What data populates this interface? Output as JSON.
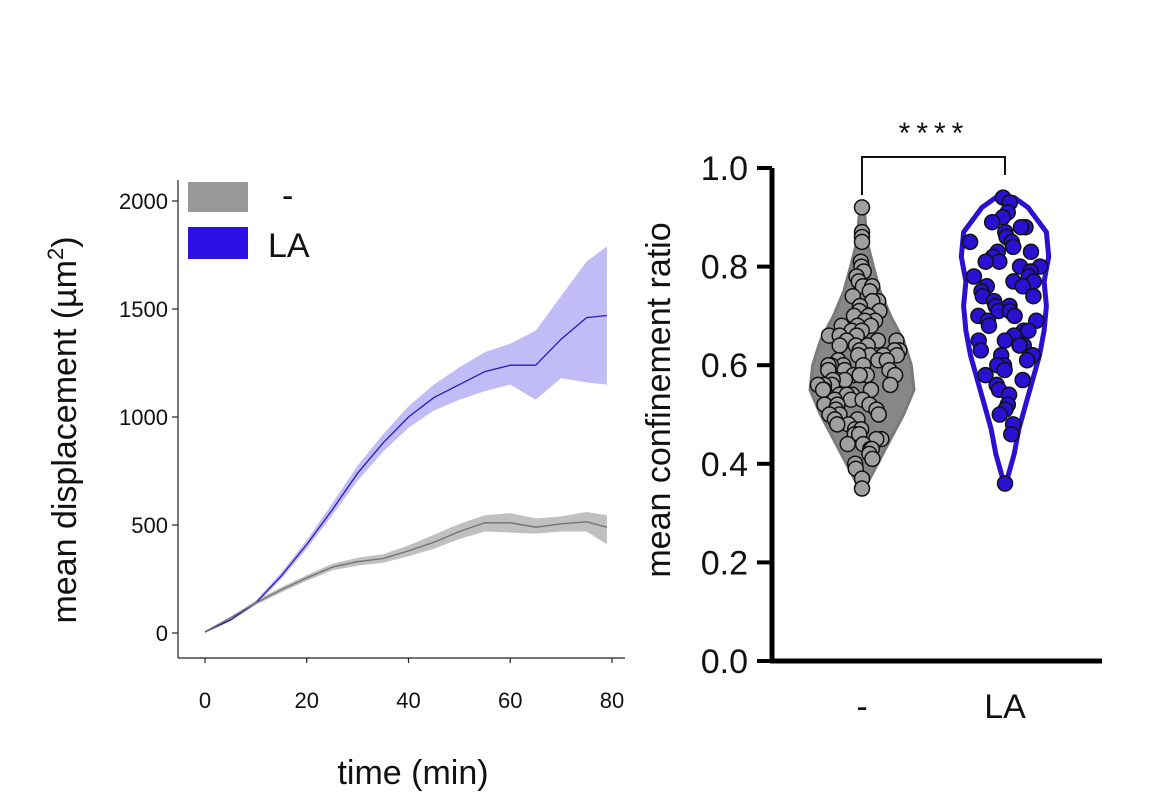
{
  "chart_data": [
    {
      "type": "area",
      "title": "",
      "xlabel": "time (min)",
      "ylabel": "mean displacement (µm²)",
      "ylabel_main": "mean displacement (µm",
      "ylabel_sup": "2",
      "ylabel_close": ")",
      "xlim": [
        -5,
        82
      ],
      "ylim": [
        -50,
        2100
      ],
      "xticks": [
        0,
        20,
        40,
        60,
        80
      ],
      "yticks": [
        0,
        500,
        1000,
        1500,
        2000
      ],
      "legend_position": "top-left",
      "series": [
        {
          "name": "-",
          "color": "#707070",
          "band_color": "#b5b5b5",
          "x": [
            0,
            5,
            10,
            15,
            20,
            25,
            30,
            35,
            40,
            45,
            50,
            55,
            60,
            65,
            70,
            75,
            79
          ],
          "mean": [
            5,
            70,
            140,
            200,
            255,
            305,
            330,
            345,
            380,
            420,
            470,
            510,
            510,
            490,
            505,
            515,
            490
          ],
          "lower": [
            0,
            65,
            130,
            188,
            242,
            290,
            312,
            325,
            355,
            390,
            435,
            470,
            465,
            460,
            470,
            470,
            410
          ],
          "upper": [
            10,
            75,
            150,
            212,
            268,
            320,
            348,
            365,
            405,
            455,
            505,
            545,
            555,
            530,
            540,
            560,
            545
          ]
        },
        {
          "name": "LA",
          "color": "#2a1ab5",
          "band_color": "#b7b0f5",
          "x": [
            0,
            5,
            10,
            15,
            20,
            25,
            30,
            35,
            40,
            45,
            50,
            55,
            60,
            65,
            70,
            75,
            79
          ],
          "mean": [
            5,
            60,
            140,
            265,
            410,
            570,
            740,
            880,
            1000,
            1090,
            1150,
            1210,
            1240,
            1240,
            1360,
            1460,
            1470
          ],
          "lower": [
            0,
            55,
            130,
            250,
            390,
            545,
            705,
            840,
            950,
            1030,
            1080,
            1120,
            1150,
            1080,
            1180,
            1160,
            1150
          ],
          "upper": [
            10,
            65,
            150,
            280,
            430,
            600,
            775,
            920,
            1050,
            1150,
            1230,
            1300,
            1340,
            1400,
            1560,
            1720,
            1790
          ]
        }
      ]
    },
    {
      "type": "scatter",
      "subtype": "violin",
      "title": "",
      "xlabel": "",
      "ylabel": "mean confinement ratio",
      "categories": [
        "-",
        "LA"
      ],
      "ylim": [
        0.0,
        1.0
      ],
      "yticks": [
        "0.0",
        "0.2",
        "0.4",
        "0.6",
        "0.8",
        "1.0"
      ],
      "significance": "****",
      "series": [
        {
          "name": "-",
          "fill": "#a0a0a0",
          "violin_color": "#7a7a7a",
          "violin_profile": [
            [
              0.35,
              0.05
            ],
            [
              0.4,
              0.3
            ],
            [
              0.45,
              0.55
            ],
            [
              0.5,
              0.8
            ],
            [
              0.55,
              1.0
            ],
            [
              0.6,
              0.95
            ],
            [
              0.65,
              0.8
            ],
            [
              0.7,
              0.55
            ],
            [
              0.75,
              0.35
            ],
            [
              0.8,
              0.22
            ],
            [
              0.85,
              0.1
            ],
            [
              0.92,
              0.04
            ]
          ],
          "values": [
            0.92,
            0.87,
            0.86,
            0.85,
            0.81,
            0.8,
            0.79,
            0.78,
            0.77,
            0.76,
            0.76,
            0.75,
            0.74,
            0.73,
            0.73,
            0.72,
            0.71,
            0.71,
            0.7,
            0.7,
            0.69,
            0.69,
            0.68,
            0.68,
            0.68,
            0.67,
            0.67,
            0.66,
            0.66,
            0.66,
            0.65,
            0.65,
            0.65,
            0.64,
            0.64,
            0.64,
            0.63,
            0.63,
            0.63,
            0.62,
            0.62,
            0.62,
            0.62,
            0.61,
            0.61,
            0.61,
            0.6,
            0.6,
            0.6,
            0.6,
            0.59,
            0.59,
            0.59,
            0.58,
            0.58,
            0.58,
            0.58,
            0.57,
            0.57,
            0.57,
            0.56,
            0.56,
            0.56,
            0.56,
            0.55,
            0.55,
            0.55,
            0.54,
            0.54,
            0.54,
            0.53,
            0.53,
            0.53,
            0.52,
            0.52,
            0.52,
            0.51,
            0.51,
            0.5,
            0.5,
            0.5,
            0.49,
            0.49,
            0.48,
            0.48,
            0.47,
            0.47,
            0.46,
            0.46,
            0.45,
            0.45,
            0.44,
            0.44,
            0.43,
            0.43,
            0.42,
            0.41,
            0.4,
            0.39,
            0.37,
            0.35
          ]
        },
        {
          "name": "LA",
          "fill": "#2a10d0",
          "violin_color": "#2a10d0",
          "violin_profile": [
            [
              0.37,
              0.05
            ],
            [
              0.42,
              0.2
            ],
            [
              0.47,
              0.3
            ],
            [
              0.52,
              0.45
            ],
            [
              0.57,
              0.6
            ],
            [
              0.62,
              0.75
            ],
            [
              0.67,
              0.85
            ],
            [
              0.72,
              0.9
            ],
            [
              0.77,
              0.85
            ],
            [
              0.82,
              0.95
            ],
            [
              0.87,
              0.9
            ],
            [
              0.92,
              0.5
            ],
            [
              0.94,
              0.2
            ]
          ],
          "values": [
            0.94,
            0.93,
            0.91,
            0.9,
            0.89,
            0.88,
            0.88,
            0.87,
            0.86,
            0.86,
            0.85,
            0.85,
            0.84,
            0.83,
            0.83,
            0.82,
            0.81,
            0.81,
            0.8,
            0.8,
            0.79,
            0.78,
            0.78,
            0.77,
            0.77,
            0.76,
            0.76,
            0.75,
            0.74,
            0.74,
            0.73,
            0.72,
            0.72,
            0.71,
            0.71,
            0.7,
            0.7,
            0.69,
            0.69,
            0.68,
            0.67,
            0.67,
            0.66,
            0.65,
            0.65,
            0.64,
            0.64,
            0.63,
            0.62,
            0.62,
            0.61,
            0.6,
            0.6,
            0.59,
            0.58,
            0.57,
            0.56,
            0.55,
            0.54,
            0.52,
            0.51,
            0.5,
            0.48,
            0.46,
            0.36
          ]
        }
      ]
    }
  ]
}
